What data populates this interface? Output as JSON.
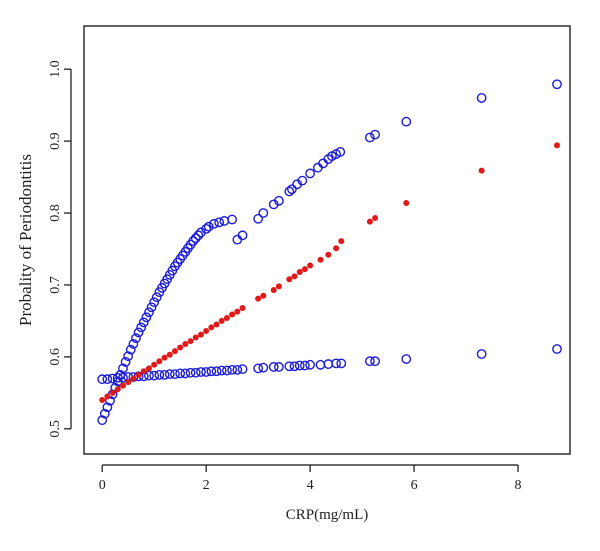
{
  "chart_data": {
    "type": "scatter",
    "title": "",
    "xlabel": "CRP(mg/mL)",
    "ylabel": "Probality of Periodontitis",
    "xlim": [
      -0.35,
      9.0
    ],
    "ylim": [
      0.465,
      1.06
    ],
    "x_ticks": [
      0,
      2,
      4,
      6,
      8
    ],
    "y_ticks": [
      0.5,
      0.6,
      0.7,
      0.8,
      0.9,
      1.0
    ],
    "x_tick_labels": [
      "0",
      "2",
      "4",
      "6",
      "8"
    ],
    "y_tick_labels": [
      "0.5",
      "0.6",
      "0.7",
      "0.8",
      "0.9",
      "1.0"
    ],
    "grid": false,
    "legend": "none",
    "series": [
      {
        "marker": "open-circle",
        "color": "#1c1cd6",
        "points": [
          [
            0.0,
            0.512
          ],
          [
            0.05,
            0.521
          ],
          [
            0.1,
            0.53
          ],
          [
            0.15,
            0.539
          ],
          [
            0.2,
            0.548
          ],
          [
            0.25,
            0.557
          ],
          [
            0.3,
            0.566
          ],
          [
            0.35,
            0.575
          ],
          [
            0.4,
            0.584
          ],
          [
            0.45,
            0.593
          ],
          [
            0.5,
            0.601
          ],
          [
            0.55,
            0.61
          ],
          [
            0.6,
            0.618
          ],
          [
            0.65,
            0.626
          ],
          [
            0.7,
            0.634
          ],
          [
            0.75,
            0.641
          ],
          [
            0.8,
            0.648
          ],
          [
            0.85,
            0.655
          ],
          [
            0.9,
            0.662
          ],
          [
            0.95,
            0.669
          ],
          [
            1.0,
            0.676
          ],
          [
            1.05,
            0.683
          ],
          [
            1.1,
            0.69
          ],
          [
            1.15,
            0.696
          ],
          [
            1.2,
            0.702
          ],
          [
            1.25,
            0.708
          ],
          [
            1.3,
            0.714
          ],
          [
            1.35,
            0.72
          ],
          [
            1.4,
            0.726
          ],
          [
            1.45,
            0.731
          ],
          [
            1.5,
            0.736
          ],
          [
            1.55,
            0.741
          ],
          [
            1.6,
            0.746
          ],
          [
            1.65,
            0.751
          ],
          [
            1.7,
            0.756
          ],
          [
            1.75,
            0.761
          ],
          [
            1.8,
            0.765
          ],
          [
            1.85,
            0.769
          ],
          [
            1.9,
            0.773
          ],
          [
            2.0,
            0.778
          ],
          [
            2.05,
            0.781
          ],
          [
            2.15,
            0.785
          ],
          [
            2.25,
            0.787
          ],
          [
            2.35,
            0.789
          ],
          [
            2.5,
            0.791
          ],
          [
            2.6,
            0.763
          ],
          [
            2.7,
            0.769
          ],
          [
            3.0,
            0.792
          ],
          [
            3.1,
            0.8
          ],
          [
            3.3,
            0.812
          ],
          [
            3.4,
            0.817
          ],
          [
            3.6,
            0.83
          ],
          [
            3.65,
            0.833
          ],
          [
            3.75,
            0.84
          ],
          [
            3.85,
            0.845
          ],
          [
            4.0,
            0.855
          ],
          [
            4.15,
            0.863
          ],
          [
            4.25,
            0.869
          ],
          [
            4.35,
            0.875
          ],
          [
            4.42,
            0.879
          ],
          [
            4.5,
            0.882
          ],
          [
            4.58,
            0.885
          ],
          [
            5.15,
            0.905
          ],
          [
            5.25,
            0.909
          ],
          [
            5.85,
            0.927
          ],
          [
            7.3,
            0.96
          ],
          [
            8.75,
            0.979
          ]
        ]
      },
      {
        "marker": "open-circle",
        "color": "#1c1cd6",
        "points": [
          [
            0.0,
            0.569
          ],
          [
            0.1,
            0.569
          ],
          [
            0.2,
            0.57
          ],
          [
            0.3,
            0.571
          ],
          [
            0.4,
            0.571
          ],
          [
            0.5,
            0.572
          ],
          [
            0.6,
            0.572
          ],
          [
            0.7,
            0.573
          ],
          [
            0.8,
            0.573
          ],
          [
            0.9,
            0.574
          ],
          [
            1.0,
            0.574
          ],
          [
            1.1,
            0.575
          ],
          [
            1.2,
            0.575
          ],
          [
            1.3,
            0.576
          ],
          [
            1.4,
            0.576
          ],
          [
            1.5,
            0.577
          ],
          [
            1.6,
            0.577
          ],
          [
            1.7,
            0.578
          ],
          [
            1.8,
            0.578
          ],
          [
            1.9,
            0.579
          ],
          [
            2.0,
            0.579
          ],
          [
            2.1,
            0.58
          ],
          [
            2.2,
            0.58
          ],
          [
            2.3,
            0.581
          ],
          [
            2.4,
            0.581
          ],
          [
            2.5,
            0.582
          ],
          [
            2.6,
            0.582
          ],
          [
            2.7,
            0.583
          ],
          [
            3.0,
            0.584
          ],
          [
            3.1,
            0.585
          ],
          [
            3.3,
            0.586
          ],
          [
            3.4,
            0.586
          ],
          [
            3.6,
            0.587
          ],
          [
            3.7,
            0.587
          ],
          [
            3.8,
            0.588
          ],
          [
            3.9,
            0.588
          ],
          [
            4.0,
            0.589
          ],
          [
            4.2,
            0.589
          ],
          [
            4.35,
            0.59
          ],
          [
            4.5,
            0.591
          ],
          [
            4.6,
            0.591
          ],
          [
            5.15,
            0.594
          ],
          [
            5.25,
            0.594
          ],
          [
            5.85,
            0.597
          ],
          [
            7.3,
            0.604
          ],
          [
            8.75,
            0.611
          ]
        ]
      },
      {
        "marker": "filled-dot",
        "color": "#e01919",
        "points": [
          [
            0.0,
            0.54
          ],
          [
            0.1,
            0.545
          ],
          [
            0.2,
            0.55
          ],
          [
            0.3,
            0.555
          ],
          [
            0.4,
            0.56
          ],
          [
            0.5,
            0.565
          ],
          [
            0.6,
            0.57
          ],
          [
            0.7,
            0.575
          ],
          [
            0.8,
            0.58
          ],
          [
            0.9,
            0.584
          ],
          [
            1.0,
            0.589
          ],
          [
            1.1,
            0.594
          ],
          [
            1.2,
            0.599
          ],
          [
            1.3,
            0.603
          ],
          [
            1.4,
            0.608
          ],
          [
            1.5,
            0.613
          ],
          [
            1.6,
            0.618
          ],
          [
            1.7,
            0.622
          ],
          [
            1.8,
            0.627
          ],
          [
            1.9,
            0.631
          ],
          [
            2.0,
            0.636
          ],
          [
            2.1,
            0.641
          ],
          [
            2.2,
            0.645
          ],
          [
            2.3,
            0.65
          ],
          [
            2.4,
            0.654
          ],
          [
            2.5,
            0.659
          ],
          [
            2.6,
            0.663
          ],
          [
            2.7,
            0.668
          ],
          [
            3.0,
            0.681
          ],
          [
            3.1,
            0.685
          ],
          [
            3.3,
            0.693
          ],
          [
            3.4,
            0.698
          ],
          [
            3.6,
            0.708
          ],
          [
            3.7,
            0.712
          ],
          [
            3.8,
            0.718
          ],
          [
            3.9,
            0.722
          ],
          [
            4.0,
            0.727
          ],
          [
            4.2,
            0.735
          ],
          [
            4.35,
            0.742
          ],
          [
            4.5,
            0.751
          ],
          [
            4.6,
            0.761
          ],
          [
            5.15,
            0.788
          ],
          [
            5.25,
            0.793
          ],
          [
            5.85,
            0.814
          ],
          [
            7.3,
            0.859
          ],
          [
            8.75,
            0.894
          ]
        ]
      }
    ]
  }
}
